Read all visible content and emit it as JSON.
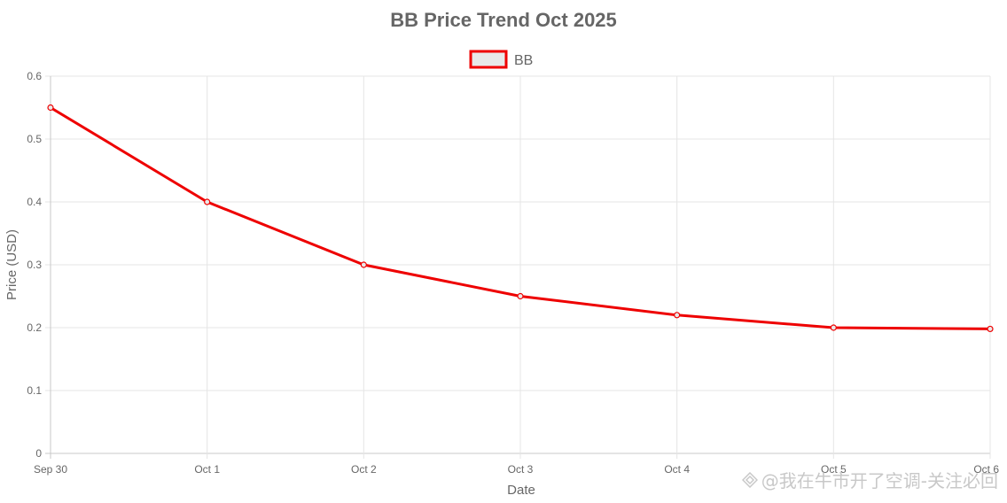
{
  "chart_data": {
    "type": "line",
    "title": "BB Price Trend Oct 2025",
    "xlabel": "Date",
    "ylabel": "Price (USD)",
    "x": [
      "Sep 30",
      "Oct 1",
      "Oct 2",
      "Oct 3",
      "Oct 4",
      "Oct 5",
      "Oct 6"
    ],
    "series": [
      {
        "name": "BB",
        "values": [
          0.55,
          0.4,
          0.3,
          0.25,
          0.22,
          0.2,
          0.198
        ]
      }
    ],
    "ylim": [
      0,
      0.6
    ],
    "yticks": [
      "0",
      "0.1",
      "0.2",
      "0.3",
      "0.4",
      "0.5",
      "0.6"
    ],
    "grid": true,
    "legend_position": "top",
    "colors": {
      "line": "#ee0000",
      "legend_fill": "#e8e8e8",
      "grid": "#e5e5e5",
      "text": "#666666"
    }
  },
  "watermark": {
    "text": "@我在牛市开了空调-关注必回",
    "icon": "diamond-logo-icon"
  }
}
